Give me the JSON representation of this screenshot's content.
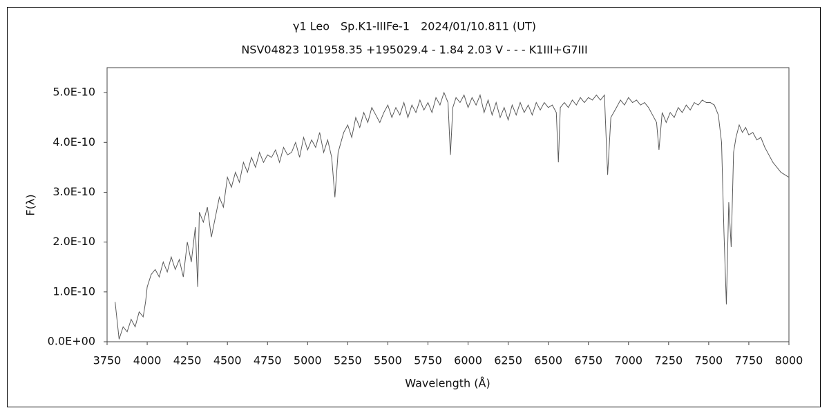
{
  "chart_data": {
    "type": "line",
    "title": "γ1 Leo　Sp.K1-IIIFe-1　2024/01/10.811 (UT)",
    "subtitle": "NSV04823 101958.35 +195029.4 - 1.84 2.03 V - - - K1III+G7III",
    "x_label": "Wavelength (Å)",
    "y_label": "F(λ)",
    "xlim": [
      3750,
      8000
    ],
    "xticks": [
      3750,
      4000,
      4250,
      4500,
      4750,
      5000,
      5250,
      5500,
      5750,
      6000,
      6250,
      6500,
      6750,
      7000,
      7250,
      7500,
      7750,
      8000
    ],
    "ylim": [
      0,
      5.5e-10
    ],
    "yticks": [
      {
        "value": 0,
        "label": "0.0E+00"
      },
      {
        "value": 1e-10,
        "label": "1.0E-10"
      },
      {
        "value": 2e-10,
        "label": "2.0E-10"
      },
      {
        "value": 3e-10,
        "label": "3.0E-10"
      },
      {
        "value": 4e-10,
        "label": "4.0E-10"
      },
      {
        "value": 5e-10,
        "label": "5.0E-10"
      }
    ],
    "grid": false,
    "series": [
      {
        "color": "#5a5a5a",
        "x": [
          3800,
          3825,
          3850,
          3875,
          3900,
          3925,
          3950,
          3975,
          3990,
          4000,
          4025,
          4050,
          4075,
          4100,
          4125,
          4150,
          4175,
          4200,
          4225,
          4250,
          4275,
          4300,
          4315,
          4325,
          4350,
          4375,
          4400,
          4425,
          4450,
          4475,
          4500,
          4525,
          4550,
          4575,
          4600,
          4625,
          4650,
          4675,
          4700,
          4725,
          4750,
          4775,
          4800,
          4825,
          4850,
          4875,
          4900,
          4925,
          4950,
          4975,
          5000,
          5025,
          5050,
          5075,
          5100,
          5125,
          5150,
          5170,
          5190,
          5225,
          5250,
          5275,
          5300,
          5325,
          5350,
          5375,
          5400,
          5425,
          5450,
          5475,
          5500,
          5525,
          5550,
          5575,
          5600,
          5625,
          5650,
          5675,
          5700,
          5725,
          5750,
          5775,
          5800,
          5825,
          5850,
          5875,
          5890,
          5905,
          5925,
          5950,
          5975,
          6000,
          6025,
          6050,
          6075,
          6100,
          6125,
          6150,
          6175,
          6200,
          6225,
          6250,
          6275,
          6300,
          6325,
          6350,
          6375,
          6400,
          6425,
          6450,
          6475,
          6500,
          6525,
          6550,
          6563,
          6575,
          6600,
          6625,
          6650,
          6675,
          6700,
          6725,
          6750,
          6775,
          6800,
          6825,
          6850,
          6870,
          6890,
          6925,
          6950,
          6975,
          7000,
          7025,
          7050,
          7075,
          7100,
          7125,
          7150,
          7175,
          7190,
          7210,
          7235,
          7260,
          7285,
          7310,
          7335,
          7360,
          7385,
          7410,
          7435,
          7460,
          7485,
          7510,
          7535,
          7560,
          7580,
          7595,
          7610,
          7625,
          7640,
          7655,
          7670,
          7690,
          7710,
          7730,
          7750,
          7775,
          7800,
          7825,
          7850,
          7875,
          7900,
          7925,
          7950,
          7975,
          8000
        ],
        "values": [
          8e-11,
          5e-12,
          3e-11,
          2e-11,
          4.5e-11,
          3e-11,
          6e-11,
          5e-11,
          8e-11,
          1.1e-10,
          1.35e-10,
          1.45e-10,
          1.3e-10,
          1.6e-10,
          1.4e-10,
          1.7e-10,
          1.45e-10,
          1.65e-10,
          1.3e-10,
          2e-10,
          1.6e-10,
          2.3e-10,
          1.1e-10,
          2.6e-10,
          2.4e-10,
          2.7e-10,
          2.1e-10,
          2.5e-10,
          2.9e-10,
          2.7e-10,
          3.3e-10,
          3.1e-10,
          3.4e-10,
          3.2e-10,
          3.6e-10,
          3.4e-10,
          3.7e-10,
          3.5e-10,
          3.8e-10,
          3.6e-10,
          3.75e-10,
          3.7e-10,
          3.85e-10,
          3.6e-10,
          3.9e-10,
          3.75e-10,
          3.8e-10,
          4e-10,
          3.7e-10,
          4.1e-10,
          3.85e-10,
          4.05e-10,
          3.9e-10,
          4.2e-10,
          3.8e-10,
          4.05e-10,
          3.7e-10,
          2.9e-10,
          3.8e-10,
          4.2e-10,
          4.35e-10,
          4.1e-10,
          4.5e-10,
          4.3e-10,
          4.6e-10,
          4.4e-10,
          4.7e-10,
          4.55e-10,
          4.4e-10,
          4.6e-10,
          4.75e-10,
          4.5e-10,
          4.7e-10,
          4.55e-10,
          4.8e-10,
          4.5e-10,
          4.75e-10,
          4.6e-10,
          4.85e-10,
          4.65e-10,
          4.8e-10,
          4.6e-10,
          4.9e-10,
          4.75e-10,
          5e-10,
          4.8e-10,
          3.75e-10,
          4.7e-10,
          4.9e-10,
          4.8e-10,
          4.95e-10,
          4.7e-10,
          4.9e-10,
          4.75e-10,
          4.95e-10,
          4.6e-10,
          4.85e-10,
          4.55e-10,
          4.8e-10,
          4.5e-10,
          4.7e-10,
          4.45e-10,
          4.75e-10,
          4.55e-10,
          4.8e-10,
          4.6e-10,
          4.75e-10,
          4.55e-10,
          4.8e-10,
          4.65e-10,
          4.8e-10,
          4.7e-10,
          4.75e-10,
          4.6e-10,
          3.6e-10,
          4.7e-10,
          4.8e-10,
          4.7e-10,
          4.85e-10,
          4.75e-10,
          4.9e-10,
          4.8e-10,
          4.9e-10,
          4.85e-10,
          4.95e-10,
          4.85e-10,
          4.95e-10,
          3.35e-10,
          4.5e-10,
          4.7e-10,
          4.85e-10,
          4.75e-10,
          4.9e-10,
          4.8e-10,
          4.85e-10,
          4.75e-10,
          4.8e-10,
          4.7e-10,
          4.55e-10,
          4.4e-10,
          3.85e-10,
          4.6e-10,
          4.4e-10,
          4.6e-10,
          4.5e-10,
          4.7e-10,
          4.6e-10,
          4.75e-10,
          4.65e-10,
          4.8e-10,
          4.75e-10,
          4.85e-10,
          4.8e-10,
          4.8e-10,
          4.75e-10,
          4.55e-10,
          4e-10,
          2.2e-10,
          7.5e-11,
          2.8e-10,
          1.9e-10,
          3.8e-10,
          4.1e-10,
          4.35e-10,
          4.2e-10,
          4.3e-10,
          4.15e-10,
          4.2e-10,
          4.05e-10,
          4.1e-10,
          3.9e-10,
          3.75e-10,
          3.6e-10,
          3.5e-10,
          3.4e-10,
          3.35e-10,
          3.3e-10
        ]
      }
    ]
  }
}
